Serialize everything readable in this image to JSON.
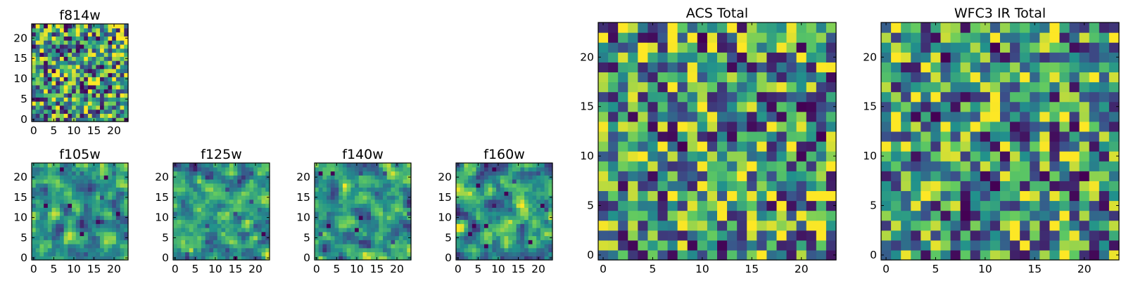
{
  "figure": {
    "description_type": "grid of heatmap panels",
    "colormap": "viridis",
    "colormap_stops": [
      "#440154",
      "#3b528b",
      "#21918c",
      "#5ec962",
      "#fde725"
    ]
  },
  "chart_data": [
    {
      "type": "heatmap",
      "title": "f814w",
      "grid_size": [
        24,
        24
      ],
      "seed": 11,
      "smoothing": 0,
      "low_cells": 14,
      "xticks": [
        0,
        5,
        10,
        15,
        20
      ],
      "yticks": [
        0,
        5,
        10,
        15,
        20
      ],
      "xlim": [
        -0.5,
        23.5
      ],
      "ylim": [
        -0.5,
        23.5
      ]
    },
    {
      "type": "heatmap",
      "title": "f105w",
      "grid_size": [
        24,
        24
      ],
      "seed": 23,
      "smoothing": 1,
      "low_cells": 10,
      "xticks": [
        0,
        5,
        10,
        15,
        20
      ],
      "yticks": [
        0,
        5,
        10,
        15,
        20
      ],
      "xlim": [
        -0.5,
        23.5
      ],
      "ylim": [
        -0.5,
        23.5
      ]
    },
    {
      "type": "heatmap",
      "title": "f125w",
      "grid_size": [
        24,
        24
      ],
      "seed": 37,
      "smoothing": 1,
      "low_cells": 10,
      "xticks": [
        0,
        5,
        10,
        15,
        20
      ],
      "yticks": [
        0,
        5,
        10,
        15,
        20
      ],
      "xlim": [
        -0.5,
        23.5
      ],
      "ylim": [
        -0.5,
        23.5
      ]
    },
    {
      "type": "heatmap",
      "title": "f140w",
      "grid_size": [
        24,
        24
      ],
      "seed": 41,
      "smoothing": 1,
      "low_cells": 10,
      "xticks": [
        0,
        5,
        10,
        15,
        20
      ],
      "yticks": [
        0,
        5,
        10,
        15,
        20
      ],
      "xlim": [
        -0.5,
        23.5
      ],
      "ylim": [
        -0.5,
        23.5
      ]
    },
    {
      "type": "heatmap",
      "title": "f160w",
      "grid_size": [
        24,
        24
      ],
      "seed": 53,
      "smoothing": 1,
      "low_cells": 10,
      "xticks": [
        0,
        5,
        10,
        15,
        20
      ],
      "yticks": [
        0,
        5,
        10,
        15,
        20
      ],
      "xlim": [
        -0.5,
        23.5
      ],
      "ylim": [
        -0.5,
        23.5
      ]
    },
    {
      "type": "heatmap",
      "title": "ACS Total",
      "grid_size": [
        24,
        24
      ],
      "seed": 67,
      "smoothing": 0,
      "low_cells": 9,
      "xticks": [
        0,
        5,
        10,
        15,
        20
      ],
      "yticks": [
        0,
        5,
        10,
        15,
        20
      ],
      "xlim": [
        -0.5,
        23.5
      ],
      "ylim": [
        -0.5,
        23.5
      ]
    },
    {
      "type": "heatmap",
      "title": "WFC3 IR Total",
      "grid_size": [
        24,
        24
      ],
      "seed": 79,
      "smoothing": 0,
      "low_cells": 14,
      "xticks": [
        0,
        5,
        10,
        15,
        20
      ],
      "yticks": [
        0,
        5,
        10,
        15,
        20
      ],
      "xlim": [
        -0.5,
        23.5
      ],
      "ylim": [
        -0.5,
        23.5
      ]
    }
  ]
}
